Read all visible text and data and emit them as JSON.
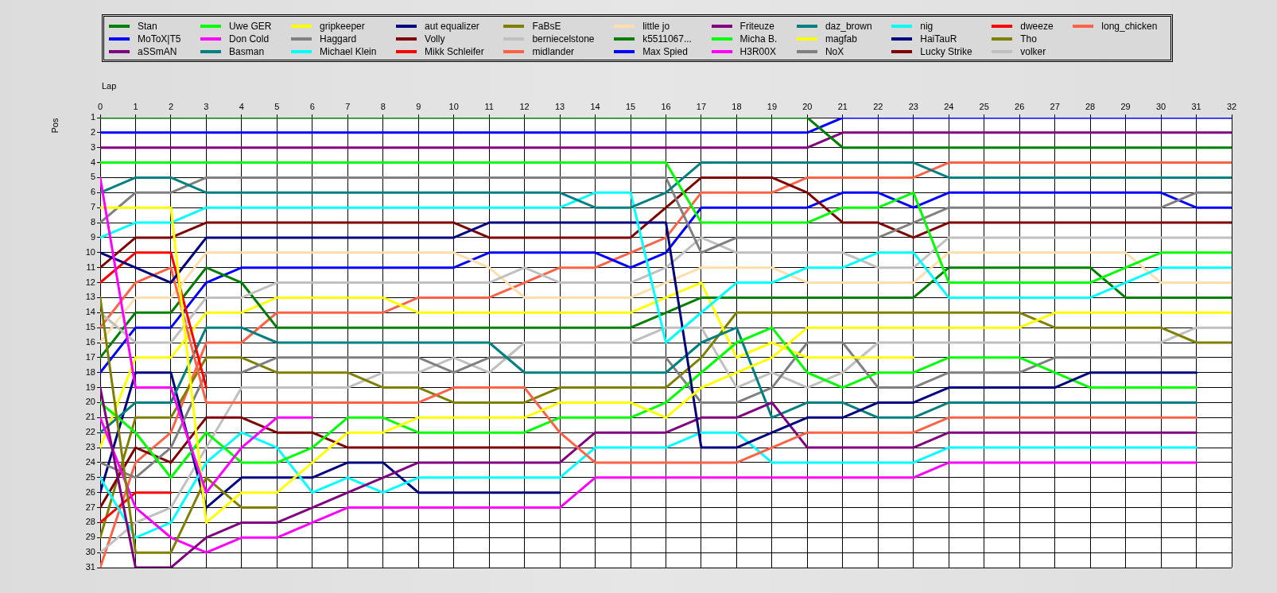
{
  "chart_data": {
    "type": "line",
    "xlabel": "Lap",
    "ylabel": "Pos",
    "x": [
      0,
      1,
      2,
      3,
      4,
      5,
      6,
      7,
      8,
      9,
      10,
      11,
      12,
      13,
      14,
      15,
      16,
      17,
      18,
      19,
      20,
      21,
      22,
      23,
      24,
      25,
      26,
      27,
      28,
      29,
      30,
      31,
      32
    ],
    "xlim": [
      0,
      32
    ],
    "xticks": [
      0,
      1,
      2,
      3,
      4,
      5,
      6,
      7,
      8,
      9,
      10,
      11,
      12,
      13,
      14,
      15,
      16,
      17,
      18,
      19,
      20,
      21,
      22,
      23,
      24,
      25,
      26,
      27,
      28,
      29,
      30,
      31,
      32
    ],
    "ylim": [
      31,
      1
    ],
    "yticks": [
      1,
      2,
      3,
      4,
      5,
      6,
      7,
      8,
      9,
      10,
      11,
      12,
      13,
      14,
      15,
      16,
      17,
      18,
      19,
      20,
      21,
      22,
      23,
      24,
      25,
      26,
      27,
      28,
      29,
      30,
      31
    ],
    "grid": true,
    "legend": "top",
    "marker": "none",
    "line_style": "solid",
    "series": [
      {
        "name": "Stan",
        "color": "#008000",
        "values": [
          1,
          1,
          1,
          1,
          1,
          1,
          1,
          1,
          1,
          1,
          1,
          1,
          1,
          1,
          1,
          1,
          1,
          1,
          1,
          1,
          1,
          3,
          3,
          3,
          3,
          3,
          3,
          3,
          3,
          3,
          3,
          3,
          3
        ]
      },
      {
        "name": "MoToX|T5",
        "color": "#0000ff",
        "values": [
          2,
          2,
          2,
          2,
          2,
          2,
          2,
          2,
          2,
          2,
          2,
          2,
          2,
          2,
          2,
          2,
          2,
          2,
          2,
          2,
          2,
          1,
          1,
          1,
          1,
          1,
          1,
          1,
          1,
          1,
          1,
          1,
          1
        ]
      },
      {
        "name": "aSSmAN",
        "color": "#800080",
        "values": [
          3,
          3,
          3,
          3,
          3,
          3,
          3,
          3,
          3,
          3,
          3,
          3,
          3,
          3,
          3,
          3,
          3,
          3,
          3,
          3,
          3,
          2,
          2,
          2,
          2,
          2,
          2,
          2,
          2,
          2,
          2,
          2,
          2
        ]
      },
      {
        "name": "Uwe GER",
        "color": "#00ff00",
        "values": [
          4,
          4,
          4,
          4,
          4,
          4,
          4,
          4,
          4,
          4,
          4,
          4,
          4,
          4,
          4,
          4,
          4,
          8,
          8,
          8,
          8,
          7,
          7,
          6,
          12,
          12,
          12,
          12,
          12,
          11,
          10,
          10,
          10
        ]
      },
      {
        "name": "Don Cold",
        "color": "#ff00ff",
        "values": [
          5,
          19,
          19,
          26,
          23,
          21,
          21,
          null,
          null,
          null,
          null,
          null,
          null,
          null,
          null,
          null,
          null,
          null,
          null,
          null,
          null,
          null,
          null,
          null,
          null,
          null,
          null,
          null,
          null,
          null,
          null,
          null,
          null
        ]
      },
      {
        "name": "Basman",
        "color": "#008080",
        "values": [
          6,
          5,
          5,
          6,
          6,
          6,
          6,
          6,
          6,
          6,
          6,
          6,
          6,
          6,
          7,
          7,
          6,
          4,
          4,
          4,
          4,
          4,
          4,
          4,
          5,
          5,
          5,
          5,
          5,
          5,
          5,
          5,
          5
        ]
      },
      {
        "name": "gripkeeper",
        "color": "#ffff00",
        "values": [
          7,
          7,
          7,
          28,
          26,
          26,
          24,
          22,
          22,
          21,
          21,
          21,
          21,
          20,
          20,
          20,
          21,
          19,
          18,
          17,
          15,
          15,
          15,
          15,
          15,
          15,
          15,
          14,
          14,
          14,
          14,
          14,
          14
        ]
      },
      {
        "name": "Haggard",
        "color": "#808080",
        "values": [
          8,
          6,
          6,
          5,
          5,
          5,
          5,
          5,
          5,
          5,
          5,
          5,
          5,
          5,
          5,
          5,
          5,
          10,
          9,
          9,
          9,
          9,
          9,
          8,
          7,
          7,
          7,
          7,
          7,
          7,
          7,
          6,
          6
        ]
      },
      {
        "name": "Michael Klein",
        "color": "#00ffff",
        "values": [
          9,
          8,
          8,
          7,
          7,
          7,
          7,
          7,
          7,
          7,
          7,
          7,
          7,
          7,
          6,
          6,
          16,
          14,
          12,
          12,
          11,
          11,
          10,
          10,
          13,
          13,
          13,
          13,
          13,
          12,
          11,
          11,
          11
        ]
      },
      {
        "name": "aut equalizer",
        "color": "#000080",
        "values": [
          10,
          11,
          12,
          9,
          9,
          9,
          9,
          9,
          9,
          9,
          9,
          8,
          8,
          8,
          8,
          8,
          8,
          23,
          23,
          22,
          21,
          21,
          20,
          20,
          19,
          19,
          19,
          19,
          18,
          18,
          18,
          18,
          null
        ]
      },
      {
        "name": "Volly",
        "color": "#800000",
        "values": [
          11,
          9,
          9,
          8,
          8,
          8,
          8,
          8,
          8,
          8,
          8,
          9,
          9,
          9,
          9,
          9,
          7,
          5,
          5,
          5,
          6,
          8,
          8,
          9,
          8,
          8,
          8,
          8,
          8,
          8,
          8,
          8,
          8
        ]
      },
      {
        "name": "Mikk Schleifer",
        "color": "#ff0000",
        "values": [
          12,
          10,
          10,
          19,
          null,
          null,
          null,
          null,
          null,
          null,
          null,
          null,
          null,
          null,
          null,
          null,
          null,
          null,
          null,
          null,
          null,
          null,
          null,
          null,
          null,
          null,
          null,
          null,
          null,
          null,
          null,
          null,
          null
        ]
      },
      {
        "name": "FaBsE",
        "color": "#808000",
        "values": [
          13,
          30,
          30,
          25,
          27,
          27,
          null,
          null,
          null,
          null,
          null,
          null,
          null,
          null,
          null,
          null,
          null,
          null,
          null,
          null,
          null,
          null,
          null,
          null,
          null,
          null,
          null,
          null,
          null,
          null,
          null,
          null,
          null
        ]
      },
      {
        "name": "berniecelstone",
        "color": "#c0c0c0",
        "values": [
          14,
          16,
          16,
          13,
          13,
          12,
          12,
          12,
          12,
          12,
          12,
          12,
          11,
          12,
          12,
          12,
          11,
          9,
          10,
          10,
          10,
          10,
          11,
          11,
          9,
          9,
          9,
          9,
          9,
          9,
          9,
          9,
          9
        ]
      },
      {
        "name": "midlander",
        "color": "#ff6347",
        "values": [
          15,
          12,
          11,
          20,
          20,
          20,
          20,
          20,
          20,
          20,
          19,
          19,
          19,
          22,
          24,
          24,
          24,
          24,
          24,
          23,
          22,
          22,
          22,
          22,
          21,
          21,
          21,
          21,
          21,
          21,
          21,
          21,
          null
        ]
      },
      {
        "name": "little jo",
        "color": "#ffdead",
        "values": [
          16,
          13,
          13,
          10,
          10,
          10,
          10,
          10,
          10,
          10,
          10,
          11,
          13,
          13,
          13,
          13,
          12,
          11,
          11,
          11,
          12,
          12,
          12,
          12,
          10,
          10,
          10,
          10,
          10,
          10,
          12,
          12,
          12
        ]
      },
      {
        "name": "k5511067...",
        "color": "#008000",
        "values": [
          17,
          14,
          14,
          11,
          12,
          15,
          15,
          15,
          15,
          15,
          15,
          15,
          15,
          15,
          15,
          15,
          14,
          13,
          13,
          13,
          13,
          13,
          13,
          13,
          11,
          11,
          11,
          11,
          11,
          13,
          13,
          13,
          13
        ]
      },
      {
        "name": "Max Spied",
        "color": "#0000ff",
        "values": [
          18,
          15,
          15,
          12,
          11,
          11,
          11,
          11,
          11,
          11,
          11,
          10,
          10,
          10,
          10,
          11,
          10,
          7,
          7,
          7,
          7,
          6,
          6,
          7,
          6,
          6,
          6,
          6,
          6,
          6,
          6,
          7,
          7
        ]
      },
      {
        "name": "Friteuze",
        "color": "#800080",
        "values": [
          19,
          31,
          31,
          29,
          28,
          28,
          27,
          26,
          25,
          24,
          24,
          24,
          24,
          24,
          22,
          22,
          22,
          21,
          21,
          20,
          23,
          23,
          23,
          23,
          22,
          22,
          22,
          22,
          22,
          22,
          22,
          22,
          null
        ]
      },
      {
        "name": "Micha B.",
        "color": "#00ff00",
        "values": [
          20,
          22,
          25,
          22,
          24,
          24,
          23,
          21,
          21,
          22,
          22,
          22,
          22,
          21,
          21,
          21,
          20,
          18,
          16,
          15,
          18,
          19,
          18,
          18,
          17,
          17,
          17,
          18,
          19,
          19,
          19,
          19,
          null
        ]
      },
      {
        "name": "H3R00X",
        "color": "#ff00ff",
        "values": [
          21,
          27,
          29,
          30,
          29,
          29,
          28,
          27,
          27,
          27,
          27,
          27,
          27,
          27,
          25,
          25,
          25,
          25,
          25,
          25,
          25,
          25,
          25,
          25,
          24,
          24,
          24,
          24,
          24,
          24,
          24,
          24,
          null
        ]
      },
      {
        "name": "daz_brown",
        "color": "#008080",
        "values": [
          22,
          20,
          20,
          15,
          15,
          16,
          16,
          16,
          16,
          16,
          16,
          16,
          18,
          18,
          18,
          18,
          18,
          16,
          15,
          21,
          20,
          20,
          21,
          21,
          20,
          20,
          20,
          20,
          20,
          20,
          20,
          20,
          null
        ]
      },
      {
        "name": "magfab",
        "color": "#ffff00",
        "values": [
          23,
          17,
          17,
          14,
          14,
          13,
          13,
          13,
          13,
          14,
          14,
          14,
          14,
          14,
          14,
          14,
          13,
          12,
          17,
          16,
          17,
          17,
          17,
          17,
          null,
          null,
          null,
          null,
          null,
          null,
          null,
          null,
          null
        ]
      },
      {
        "name": "NoX",
        "color": "#808080",
        "values": [
          24,
          25,
          23,
          18,
          18,
          17,
          17,
          17,
          17,
          17,
          18,
          17,
          17,
          17,
          17,
          17,
          17,
          20,
          20,
          19,
          16,
          16,
          19,
          19,
          18,
          18,
          18,
          17,
          17,
          17,
          17,
          17,
          null
        ]
      },
      {
        "name": "nig",
        "color": "#00ffff",
        "values": [
          25,
          29,
          28,
          24,
          22,
          23,
          26,
          25,
          26,
          25,
          25,
          25,
          25,
          25,
          23,
          23,
          23,
          22,
          22,
          24,
          24,
          24,
          24,
          24,
          23,
          23,
          23,
          23,
          23,
          23,
          23,
          23,
          null
        ]
      },
      {
        "name": "HaiTauR",
        "color": "#000080",
        "values": [
          26,
          18,
          18,
          27,
          25,
          25,
          25,
          24,
          24,
          26,
          26,
          26,
          26,
          26,
          null,
          null,
          null,
          null,
          null,
          null,
          null,
          null,
          null,
          null,
          null,
          null,
          null,
          null,
          null,
          null,
          null,
          null,
          null
        ]
      },
      {
        "name": "Lucky Strike",
        "color": "#800000",
        "values": [
          27,
          23,
          24,
          21,
          21,
          22,
          22,
          23,
          23,
          23,
          23,
          23,
          23,
          23,
          null,
          null,
          null,
          null,
          null,
          null,
          null,
          null,
          null,
          null,
          null,
          null,
          null,
          null,
          null,
          null,
          null,
          null,
          null
        ]
      },
      {
        "name": "dweeze",
        "color": "#ff0000",
        "values": [
          28,
          26,
          26,
          null,
          null,
          null,
          null,
          null,
          null,
          null,
          null,
          null,
          null,
          null,
          null,
          null,
          null,
          null,
          null,
          null,
          null,
          null,
          null,
          null,
          null,
          null,
          null,
          null,
          null,
          null,
          null,
          null,
          null
        ]
      },
      {
        "name": "Tho",
        "color": "#808000",
        "values": [
          29,
          21,
          21,
          17,
          17,
          18,
          18,
          18,
          19,
          19,
          20,
          20,
          20,
          19,
          19,
          19,
          19,
          17,
          14,
          14,
          14,
          14,
          14,
          14,
          14,
          14,
          14,
          15,
          15,
          15,
          15,
          16,
          16
        ]
      },
      {
        "name": "volker",
        "color": "#c0c0c0",
        "values": [
          30,
          28,
          27,
          23,
          19,
          19,
          19,
          19,
          18,
          18,
          17,
          18,
          16,
          16,
          16,
          16,
          15,
          15,
          19,
          18,
          19,
          18,
          16,
          16,
          16,
          16,
          16,
          16,
          16,
          16,
          16,
          15,
          15
        ]
      },
      {
        "name": "long_chicken",
        "color": "#ff6347",
        "values": [
          31,
          24,
          22,
          16,
          16,
          14,
          14,
          14,
          14,
          13,
          13,
          13,
          12,
          11,
          11,
          10,
          9,
          6,
          6,
          6,
          5,
          5,
          5,
          5,
          4,
          4,
          4,
          4,
          4,
          4,
          4,
          4,
          4
        ]
      }
    ]
  }
}
